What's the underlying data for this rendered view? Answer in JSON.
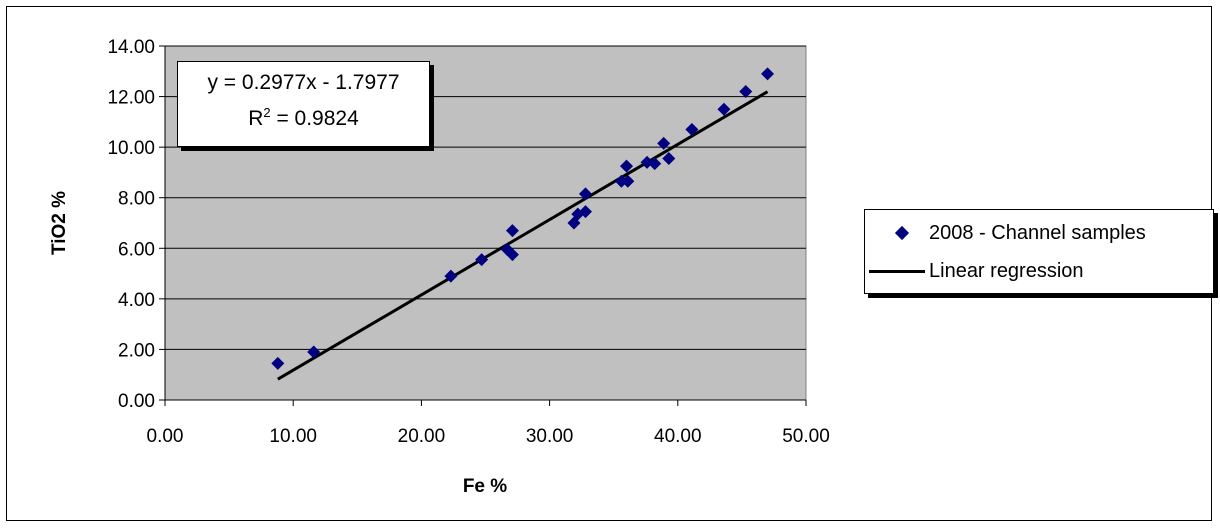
{
  "chart_data": {
    "type": "scatter",
    "xlabel": "Fe %",
    "ylabel": "TiO2 %",
    "xlim": [
      0,
      50
    ],
    "ylim": [
      0,
      14
    ],
    "x_ticks": [
      "0.00",
      "10.00",
      "20.00",
      "30.00",
      "40.00",
      "50.00"
    ],
    "y_ticks": [
      "0.00",
      "2.00",
      "4.00",
      "6.00",
      "8.00",
      "10.00",
      "12.00",
      "14.00"
    ],
    "grid": "horizontal",
    "plot_background": "#c0c0c0",
    "legend_position": "right",
    "series": [
      {
        "name": "2008 - Channel samples",
        "marker": "diamond",
        "color": "#000080",
        "points": [
          [
            8.8,
            1.45
          ],
          [
            11.6,
            1.9
          ],
          [
            22.3,
            4.9
          ],
          [
            24.7,
            5.55
          ],
          [
            26.7,
            5.95
          ],
          [
            27.1,
            5.75
          ],
          [
            27.1,
            6.7
          ],
          [
            31.9,
            7.0
          ],
          [
            32.2,
            7.35
          ],
          [
            32.8,
            7.45
          ],
          [
            32.8,
            8.15
          ],
          [
            35.6,
            8.65
          ],
          [
            36.1,
            8.65
          ],
          [
            36.0,
            9.25
          ],
          [
            37.6,
            9.4
          ],
          [
            38.2,
            9.35
          ],
          [
            38.9,
            10.15
          ],
          [
            39.3,
            9.55
          ],
          [
            41.1,
            10.7
          ],
          [
            43.6,
            11.5
          ],
          [
            45.3,
            12.2
          ],
          [
            47.0,
            12.9
          ]
        ]
      },
      {
        "name": "Linear regression",
        "type": "line",
        "color": "#000000",
        "slope": 0.2977,
        "intercept": -1.7977,
        "x_range": [
          8.8,
          47.0
        ]
      }
    ],
    "annotation": {
      "line1": "y = 0.2977x - 1.7977",
      "r2_prefix": "R",
      "r2_sup": "2",
      "r2_suffix": " = 0.9824"
    }
  }
}
